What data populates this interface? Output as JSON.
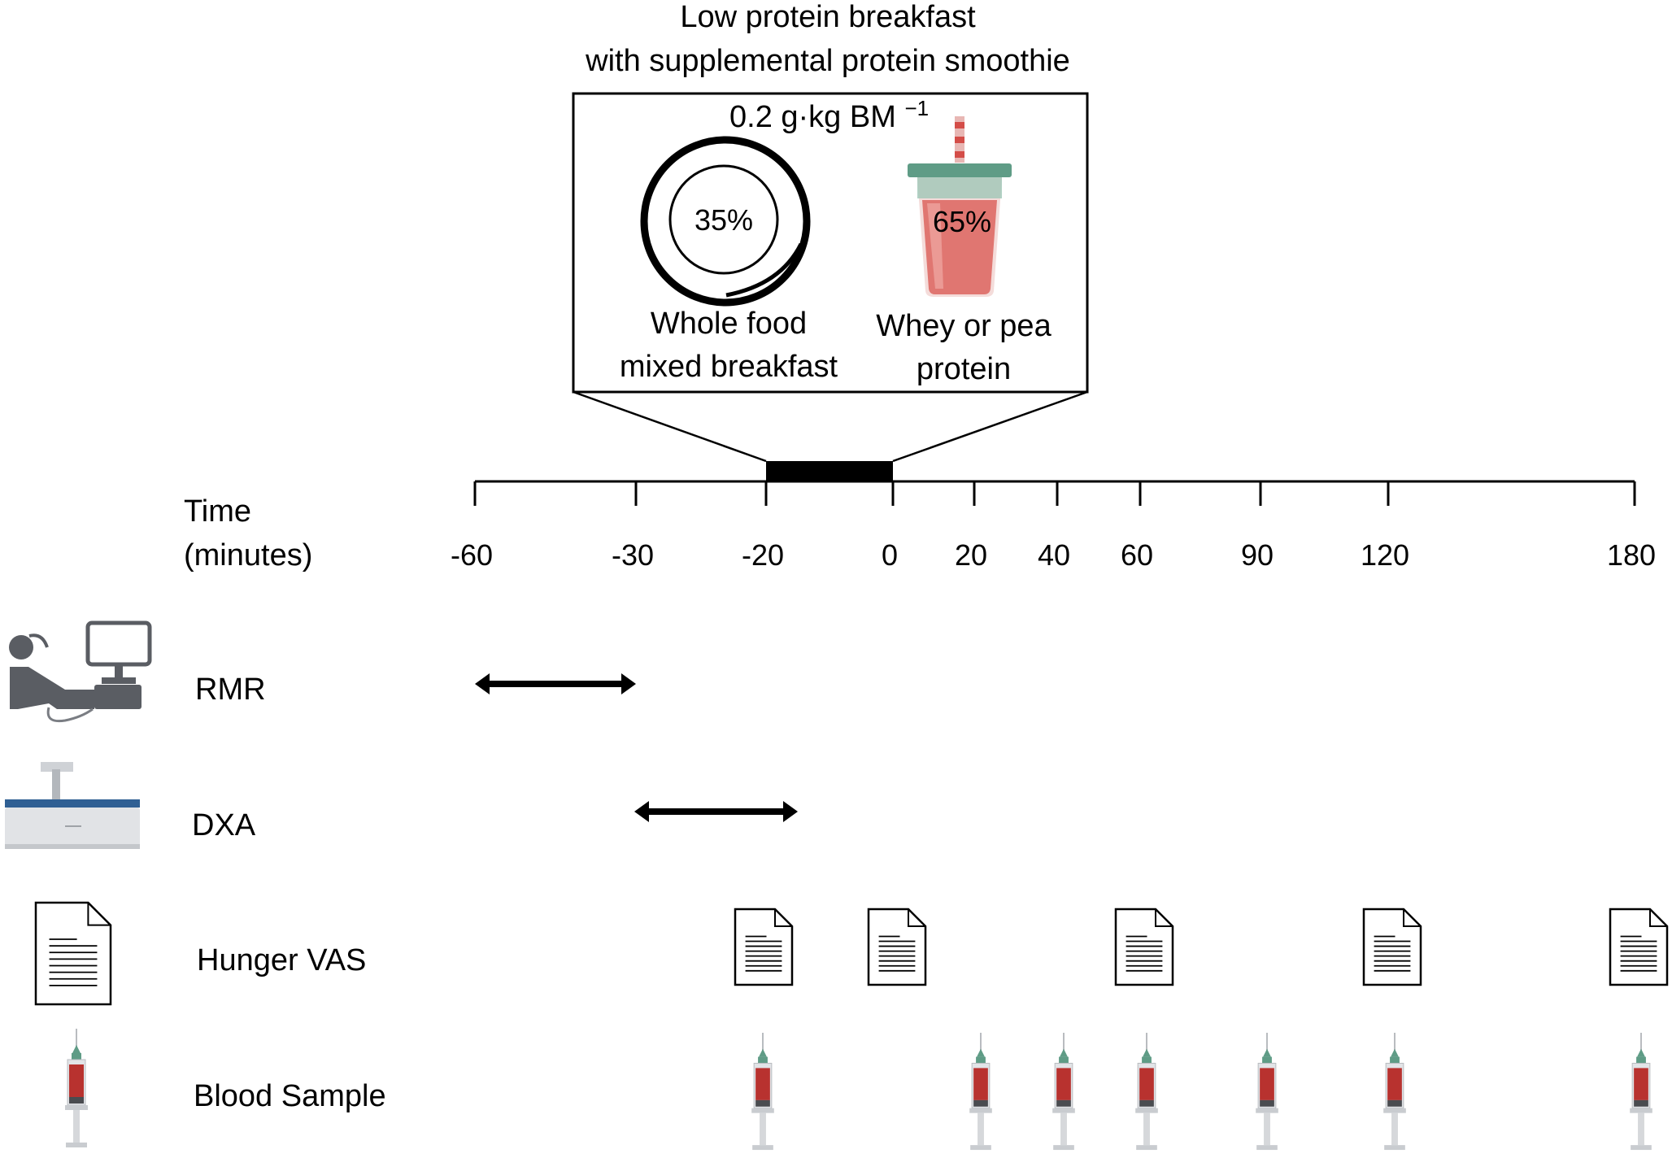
{
  "title": {
    "line1": "Low protein breakfast",
    "line2": "with supplemental protein smoothie"
  },
  "meal_box": {
    "dose_label": "0.2 g·kg BM",
    "dose_superscript": "−1",
    "whole_food": {
      "percent": "35%",
      "label_line1": "Whole food",
      "label_line2": "mixed breakfast"
    },
    "smoothie": {
      "percent": "65%",
      "label_line1": "Whey or pea",
      "label_line2": "protein"
    },
    "meal_window": {
      "start": -20,
      "end": 0
    }
  },
  "timeline": {
    "axis_label_line1": "Time",
    "axis_label_line2": "(minutes)",
    "ticks": [
      -60,
      -30,
      -20,
      0,
      20,
      40,
      60,
      90,
      120,
      180
    ],
    "tick_labels": [
      "-60",
      "-30",
      "-20",
      "0",
      "20",
      "40",
      "60",
      "90",
      "120",
      "180"
    ]
  },
  "rows": [
    {
      "key": "rmr",
      "label": "RMR",
      "icon": "metabolic-cart-icon",
      "type": "interval",
      "start": -60,
      "end": -30
    },
    {
      "key": "dxa",
      "label": "DXA",
      "icon": "dxa-scanner-icon",
      "type": "interval",
      "start": -30,
      "end": -15
    },
    {
      "key": "vas",
      "label": "Hunger VAS",
      "icon": "document-icon",
      "type": "points",
      "times": [
        -20,
        0,
        60,
        120,
        180
      ]
    },
    {
      "key": "blood",
      "label": "Blood Sample",
      "icon": "syringe-icon",
      "type": "points",
      "times": [
        -20,
        20,
        40,
        60,
        90,
        120,
        180
      ]
    }
  ],
  "colors": {
    "line": "#000000",
    "syringe_blood": "#b8322f",
    "smoothie_fill": "#e07671",
    "smoothie_lid": "#5f9c86",
    "device_gray": "#5a5d63",
    "dxa_blue": "#2f5f93"
  }
}
